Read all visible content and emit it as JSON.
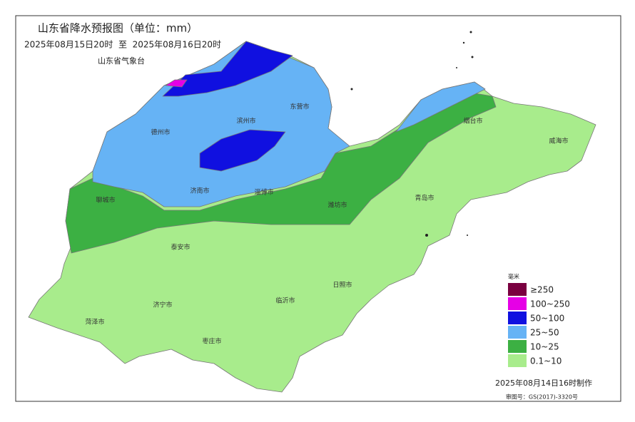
{
  "header": {
    "title": "山东省降水预报图（单位：mm）",
    "period": "2025年08月15日20时  至  2025年08月16日20时",
    "issuer": "山东省气象台"
  },
  "cities": [
    {
      "label": "德州市"
    },
    {
      "label": "滨州市"
    },
    {
      "label": "东营市"
    },
    {
      "label": "烟台市"
    },
    {
      "label": "威海市"
    },
    {
      "label": "聊城市"
    },
    {
      "label": "济南市"
    },
    {
      "label": "淄博市"
    },
    {
      "label": "潍坊市"
    },
    {
      "label": "青岛市"
    },
    {
      "label": "泰安市"
    },
    {
      "label": "日照市"
    },
    {
      "label": "临沂市"
    },
    {
      "label": "济宁市"
    },
    {
      "label": "菏泽市"
    },
    {
      "label": "枣庄市"
    }
  ],
  "legend": {
    "unit": "毫米",
    "items": [
      {
        "label": "≥250",
        "color": "#7a0040"
      },
      {
        "label": "100~250",
        "color": "#e600e6"
      },
      {
        "label": "50~100",
        "color": "#1010e0"
      },
      {
        "label": "25~50",
        "color": "#66b3f5"
      },
      {
        "label": "10~25",
        "color": "#3cb043"
      },
      {
        "label": "0.1~10",
        "color": "#a8ec8c"
      }
    ]
  },
  "footer": {
    "made": "2025年08月14日16时制作",
    "review": "审图号：GS(2017)-3320号"
  }
}
